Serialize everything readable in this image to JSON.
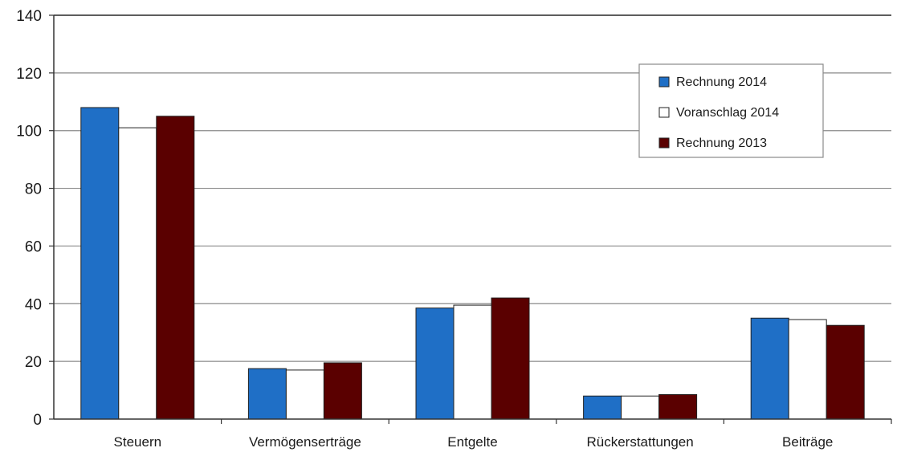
{
  "chart_data": {
    "type": "bar",
    "categories": [
      "Steuern",
      "Vermögenserträge",
      "Entgelte",
      "Rückerstattungen",
      "Beiträge"
    ],
    "series": [
      {
        "name": "Rechnung 2014",
        "color": "#1f6fc6",
        "values": [
          108,
          17.5,
          38.5,
          8,
          35
        ]
      },
      {
        "name": "Voranschlag 2014",
        "color": "#ffffff",
        "values": [
          101,
          17,
          39.5,
          8,
          34.5
        ]
      },
      {
        "name": "Rechnung 2013",
        "color": "#5a0000",
        "values": [
          105,
          19.5,
          42,
          8.5,
          32.5
        ]
      }
    ],
    "yticks": [
      0,
      20,
      40,
      60,
      80,
      100,
      120,
      140
    ],
    "ylim": [
      0,
      140
    ],
    "grid": true,
    "legend_position": "top-right"
  }
}
